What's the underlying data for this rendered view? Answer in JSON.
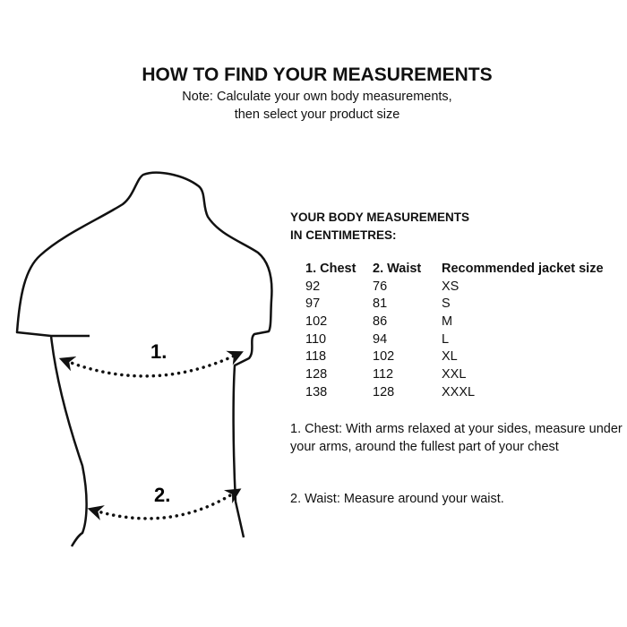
{
  "title": "HOW TO FIND YOUR MEASUREMENTS",
  "note_lines": [
    "Note: Calculate your own body measurements,",
    "then select your product size"
  ],
  "heading_lines": [
    "YOUR BODY MEASUREMENTS",
    "IN CENTIMETRES:"
  ],
  "table": {
    "headers": [
      "1. Chest",
      "2. Waist",
      "Recommended jacket size"
    ],
    "rows": [
      [
        "92",
        "76",
        "XS"
      ],
      [
        "97",
        "81",
        "S"
      ],
      [
        "102",
        "86",
        "M"
      ],
      [
        "110",
        "94",
        "L"
      ],
      [
        "118",
        "102",
        "XL"
      ],
      [
        "128",
        "112",
        "XXL"
      ],
      [
        "138",
        "128",
        "XXXL"
      ]
    ]
  },
  "figure": {
    "label_chest": "1.",
    "label_waist": "2."
  },
  "explanations": [
    "1. Chest: With arms relaxed at your sides, measure under your arms, around the fullest part of your chest",
    "2. Waist: Measure around your waist."
  ]
}
